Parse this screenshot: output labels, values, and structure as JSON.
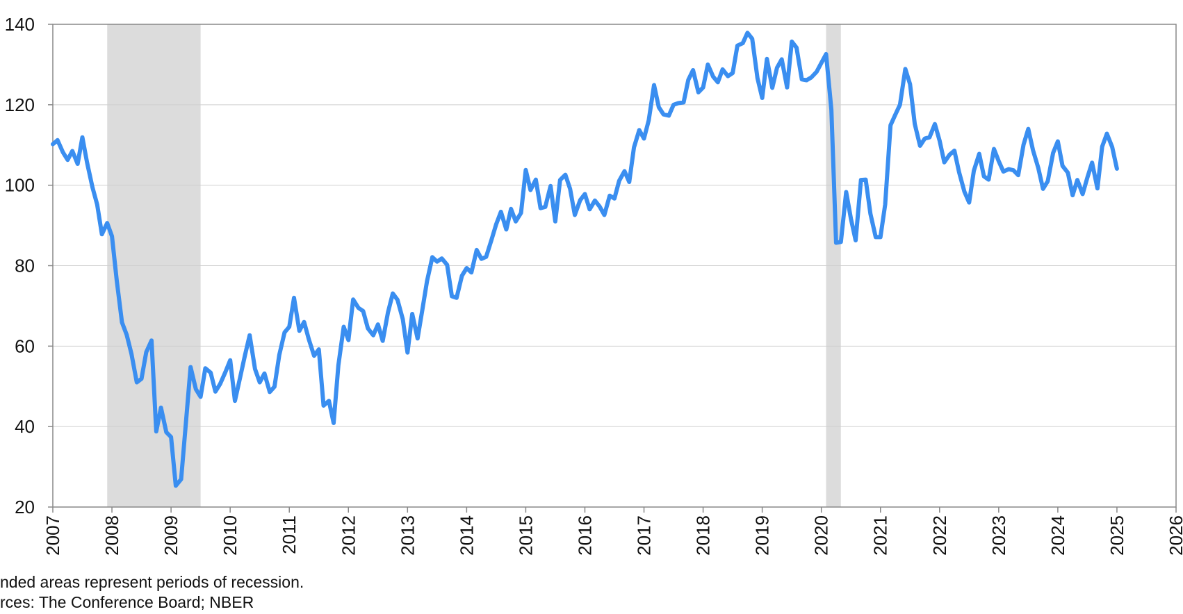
{
  "chart_data": {
    "type": "line",
    "x": [
      2007,
      2007.08,
      2007.17,
      2007.25,
      2007.33,
      2007.42,
      2007.5,
      2007.58,
      2007.67,
      2007.75,
      2007.83,
      2007.92,
      2008,
      2008.08,
      2008.17,
      2008.25,
      2008.33,
      2008.42,
      2008.5,
      2008.58,
      2008.67,
      2008.75,
      2008.83,
      2008.92,
      2009,
      2009.08,
      2009.17,
      2009.25,
      2009.33,
      2009.42,
      2009.5,
      2009.58,
      2009.67,
      2009.75,
      2009.83,
      2009.92,
      2010,
      2010.08,
      2010.17,
      2010.25,
      2010.33,
      2010.42,
      2010.5,
      2010.58,
      2010.67,
      2010.75,
      2010.83,
      2010.92,
      2011,
      2011.08,
      2011.17,
      2011.25,
      2011.33,
      2011.42,
      2011.5,
      2011.58,
      2011.67,
      2011.75,
      2011.83,
      2011.92,
      2012,
      2012.08,
      2012.17,
      2012.25,
      2012.33,
      2012.42,
      2012.5,
      2012.58,
      2012.67,
      2012.75,
      2012.83,
      2012.92,
      2013,
      2013.08,
      2013.17,
      2013.25,
      2013.33,
      2013.42,
      2013.5,
      2013.58,
      2013.67,
      2013.75,
      2013.83,
      2013.92,
      2014,
      2014.08,
      2014.17,
      2014.25,
      2014.33,
      2014.42,
      2014.5,
      2014.58,
      2014.67,
      2014.75,
      2014.83,
      2014.92,
      2015,
      2015.08,
      2015.17,
      2015.25,
      2015.33,
      2015.42,
      2015.5,
      2015.58,
      2015.67,
      2015.75,
      2015.83,
      2015.92,
      2016,
      2016.08,
      2016.17,
      2016.25,
      2016.33,
      2016.42,
      2016.5,
      2016.58,
      2016.67,
      2016.75,
      2016.83,
      2016.92,
      2017,
      2017.08,
      2017.17,
      2017.25,
      2017.33,
      2017.42,
      2017.5,
      2017.58,
      2017.67,
      2017.75,
      2017.83,
      2017.92,
      2018,
      2018.08,
      2018.17,
      2018.25,
      2018.33,
      2018.42,
      2018.5,
      2018.58,
      2018.67,
      2018.75,
      2018.83,
      2018.92,
      2019,
      2019.08,
      2019.17,
      2019.25,
      2019.33,
      2019.42,
      2019.5,
      2019.58,
      2019.67,
      2019.75,
      2019.83,
      2019.92,
      2020,
      2020.08,
      2020.17,
      2020.25,
      2020.33,
      2020.42,
      2020.5,
      2020.58,
      2020.67,
      2020.75,
      2020.83,
      2020.92,
      2021,
      2021.08,
      2021.17,
      2021.25,
      2021.33,
      2021.42,
      2021.5,
      2021.58,
      2021.67,
      2021.75,
      2021.83,
      2021.92,
      2022,
      2022.08,
      2022.17,
      2022.25,
      2022.33,
      2022.42,
      2022.5,
      2022.58,
      2022.67,
      2022.75,
      2022.83,
      2022.92,
      2023,
      2023.08,
      2023.17,
      2023.25,
      2023.33,
      2023.42,
      2023.5,
      2023.58,
      2023.67,
      2023.75,
      2023.83,
      2023.92,
      2024,
      2024.08,
      2024.17,
      2024.25,
      2024.33,
      2024.42,
      2024.5,
      2024.58,
      2024.67,
      2024.75,
      2024.83,
      2024.92,
      2025
    ],
    "values": [
      110.2,
      111.2,
      108.2,
      106.3,
      108.5,
      105.3,
      111.9,
      105.6,
      99.5,
      95.2,
      87.8,
      90.6,
      87.3,
      76.4,
      65.9,
      62.8,
      58.1,
      51.0,
      51.9,
      58.5,
      61.4,
      38.8,
      44.7,
      38.6,
      37.4,
      25.3,
      26.9,
      40.8,
      54.8,
      49.3,
      47.4,
      54.5,
      53.4,
      48.7,
      50.6,
      53.6,
      56.5,
      46.4,
      52.3,
      57.7,
      62.7,
      54.3,
      51.0,
      53.2,
      48.6,
      49.9,
      57.8,
      63.4,
      64.8,
      72.0,
      63.8,
      66.0,
      61.7,
      57.6,
      59.2,
      45.2,
      46.4,
      40.9,
      55.2,
      64.8,
      61.5,
      71.6,
      69.5,
      68.7,
      64.4,
      62.7,
      65.4,
      61.3,
      68.4,
      73.1,
      71.5,
      66.7,
      58.4,
      68.0,
      61.9,
      69.0,
      76.2,
      82.1,
      81.0,
      81.8,
      80.2,
      72.4,
      72.0,
      77.5,
      79.4,
      78.3,
      83.9,
      81.7,
      82.2,
      86.4,
      90.3,
      93.4,
      89.0,
      94.1,
      91.0,
      93.1,
      103.8,
      98.8,
      101.4,
      94.3,
      94.6,
      99.8,
      91.0,
      101.3,
      102.6,
      99.1,
      92.6,
      96.3,
      97.8,
      94.0,
      96.2,
      94.7,
      92.6,
      97.4,
      96.7,
      101.1,
      103.5,
      100.8,
      109.4,
      113.7,
      111.6,
      116.1,
      124.9,
      119.4,
      117.6,
      117.3,
      120.0,
      120.4,
      120.6,
      126.2,
      128.6,
      123.1,
      124.3,
      130.0,
      127.0,
      125.6,
      128.8,
      127.1,
      127.9,
      134.7,
      135.3,
      137.9,
      136.4,
      126.6,
      121.7,
      131.4,
      124.2,
      129.2,
      131.3,
      124.3,
      135.7,
      134.2,
      126.3,
      126.1,
      126.8,
      128.2,
      130.4,
      132.6,
      118.8,
      85.7,
      85.9,
      98.3,
      91.7,
      86.3,
      101.3,
      101.4,
      92.9,
      87.1,
      87.1,
      95.2,
      114.9,
      117.5,
      120.0,
      128.9,
      125.1,
      115.2,
      109.8,
      111.6,
      111.9,
      115.2,
      111.1,
      105.7,
      107.6,
      108.6,
      103.2,
      98.4,
      95.7,
      103.6,
      107.8,
      102.2,
      101.4,
      109.0,
      106.0,
      103.4,
      104.0,
      103.7,
      102.5,
      110.1,
      114.0,
      108.7,
      104.3,
      99.1,
      101.0,
      108.0,
      110.9,
      104.8,
      103.1,
      97.5,
      101.3,
      97.8,
      101.9,
      105.6,
      99.2,
      109.6,
      112.8,
      109.5,
      104.1
    ],
    "color": "#3a8ef0",
    "recessions": [
      [
        2007.92,
        2009.5
      ],
      [
        2020.08,
        2020.33
      ]
    ],
    "recession_color": "#dcdcdc",
    "xlim": [
      2007,
      2026
    ],
    "xticks": [
      2007,
      2008,
      2009,
      2010,
      2011,
      2012,
      2013,
      2014,
      2015,
      2016,
      2017,
      2018,
      2019,
      2020,
      2021,
      2022,
      2023,
      2024,
      2025,
      2026
    ],
    "ylim": [
      20,
      140
    ],
    "yticks": [
      20,
      40,
      60,
      80,
      100,
      120,
      140
    ],
    "grid": true,
    "notes": [
      "nded areas represent periods of recession.",
      "rces: The Conference Board; NBER"
    ]
  }
}
